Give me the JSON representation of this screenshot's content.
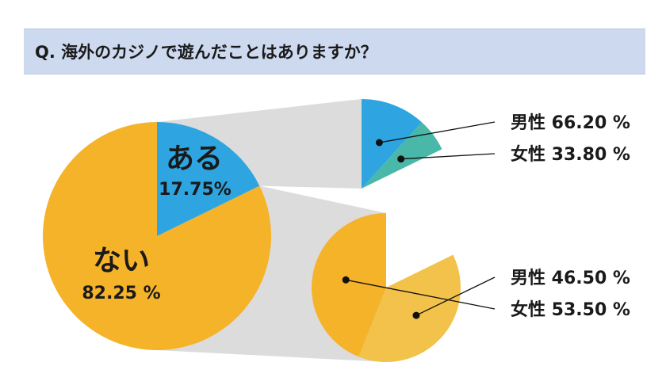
{
  "question": "Q. 海外のカジノで遊んだことはありますか？",
  "chart_data": {
    "type": "pie",
    "title": "Q. 海外のカジノで遊んだことはありますか？",
    "main": {
      "slices": [
        {
          "label": "ある",
          "value_label": "17.75%",
          "value": 17.75,
          "color": "#2ea5e0"
        },
        {
          "label": "ない",
          "value_label": "82.25 %",
          "value": 82.25,
          "color": "#f5b32a"
        }
      ]
    },
    "breakdown_yes": {
      "parent": "ある",
      "slices": [
        {
          "label": "男性 66.20 %",
          "value": 66.2,
          "color": "#2ea5e0"
        },
        {
          "label": "女性 33.80 %",
          "value": 33.8,
          "color": "#49b8a8"
        }
      ]
    },
    "breakdown_no": {
      "parent": "ない",
      "slices": [
        {
          "label": "男性 46.50 %",
          "value": 46.5,
          "color": "#f2c24a"
        },
        {
          "label": "女性 53.50 %",
          "value": 53.5,
          "color": "#f5b32a"
        }
      ]
    },
    "connector_color": "#dcdcdc"
  }
}
